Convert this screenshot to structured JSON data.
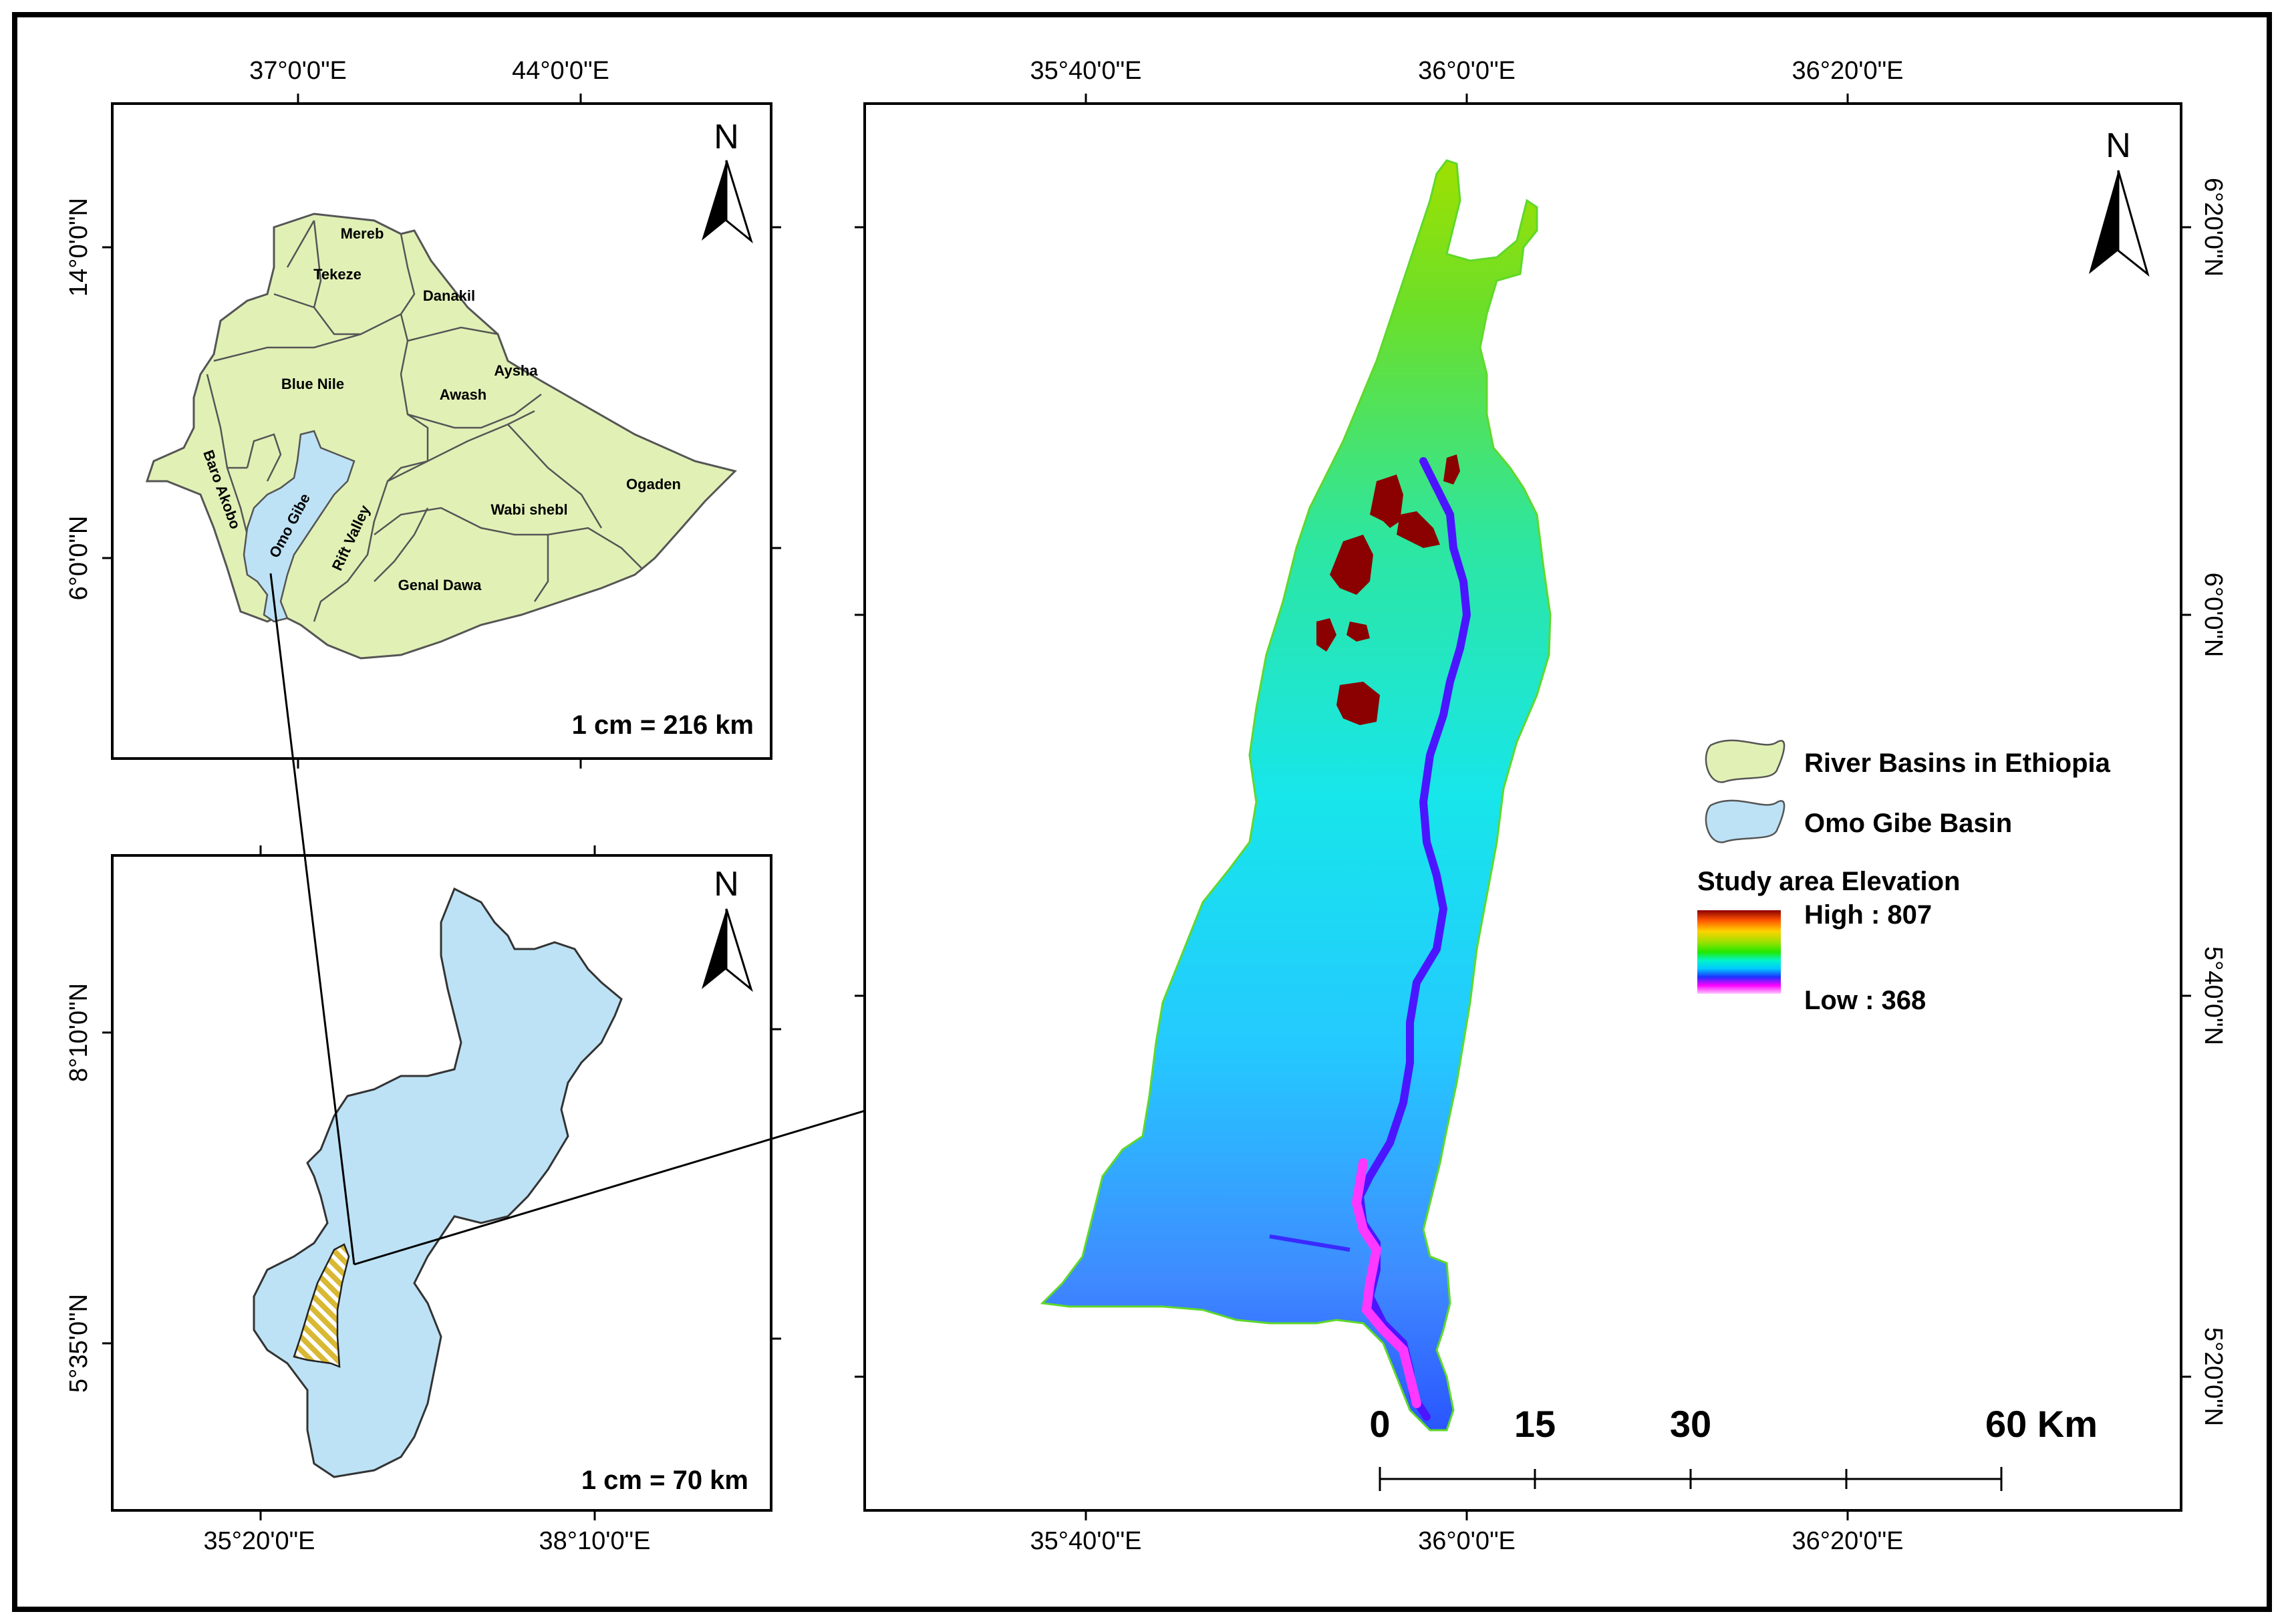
{
  "inset_top": {
    "top_ticks": [
      "37°0'0\"E",
      "44°0'0\"E"
    ],
    "left_ticks": [
      "14°0'0\"N",
      "6°0'0\"N"
    ],
    "north": "N",
    "scale": "1 cm = 216 km",
    "basins": [
      "Mereb",
      "Tekeze",
      "Danakil",
      "Blue Nile",
      "Aysha",
      "Awash",
      "Baro Akobo",
      "Omo Gibe",
      "Rift Valley",
      "Wabi shebl",
      "Ogaden",
      "Genal Dawa"
    ]
  },
  "inset_bottom": {
    "bottom_ticks": [
      "35°20'0\"E",
      "38°10'0\"E"
    ],
    "left_ticks": [
      "8°10'0\"N",
      "5°35'0\"N"
    ],
    "north": "N",
    "scale": "1 cm = 70 km"
  },
  "main_map": {
    "top_ticks": [
      "35°40'0\"E",
      "36°0'0\"E",
      "36°20'0\"E"
    ],
    "bottom_ticks": [
      "35°40'0\"E",
      "36°0'0\"E",
      "36°20'0\"E"
    ],
    "right_ticks": [
      "6°20'0\"N",
      "6°0'0\"N",
      "5°40'0\"N",
      "5°20'0\"N"
    ],
    "north": "N",
    "scale_bar": {
      "labels": [
        "0",
        "15",
        "30",
        "60 Km"
      ]
    }
  },
  "legend": {
    "items": [
      {
        "label": "River Basins in Ethiopia",
        "color": "#e1f1b6"
      },
      {
        "label": "Omo Gibe Basin",
        "color": "#bde2f5"
      }
    ],
    "elevation_title": "Study area Elevation",
    "high_label": "High : 807",
    "low_label": "Low : 368",
    "ramp_colors": [
      "#8b0000",
      "#ff5500",
      "#ffd200",
      "#9ee000",
      "#22e800",
      "#00f5c8",
      "#00c8ff",
      "#1e30ff",
      "#7000ff",
      "#ff00ff",
      "#ffb0ff"
    ]
  },
  "colors": {
    "ethiopia_fill": "#e1f1b6",
    "omo_fill": "#bde2f5",
    "study_hatch": "#d9b833"
  }
}
